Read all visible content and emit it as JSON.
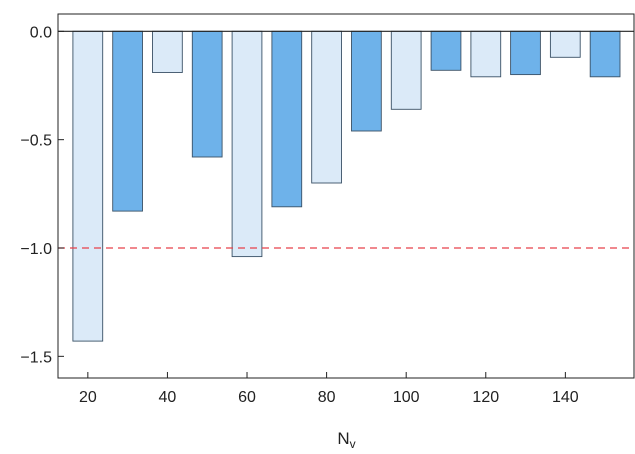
{
  "chart_data": {
    "type": "bar",
    "title": "",
    "xlabel": "N",
    "xlabel_subscript": "v",
    "ylabel": "",
    "categories": [
      "20",
      "25",
      "30",
      "35",
      "40",
      "45",
      "50",
      "55",
      "60",
      "65",
      "70",
      "75",
      "80",
      "85",
      "90",
      "95",
      "100",
      "105",
      "110",
      "115",
      "120",
      "125",
      "130",
      "135",
      "140",
      "145",
      "150"
    ],
    "x_tick_labels": [
      "20",
      "40",
      "60",
      "80",
      "100",
      "120",
      "140"
    ],
    "y_tick_labels": [
      "0.0",
      "−0.5",
      "−1.0",
      "−1.5"
    ],
    "bars": [
      {
        "x": 20,
        "value": -1.43,
        "style": "light"
      },
      {
        "x": 30,
        "value": -0.83,
        "style": "dark"
      },
      {
        "x": 40,
        "value": -0.19,
        "style": "light"
      },
      {
        "x": 50,
        "value": -0.58,
        "style": "dark"
      },
      {
        "x": 60,
        "value": -1.04,
        "style": "light"
      },
      {
        "x": 70,
        "value": -0.81,
        "style": "dark"
      },
      {
        "x": 80,
        "value": -0.7,
        "style": "light"
      },
      {
        "x": 90,
        "value": -0.46,
        "style": "dark"
      },
      {
        "x": 100,
        "value": -0.36,
        "style": "light"
      },
      {
        "x": 110,
        "value": -0.18,
        "style": "dark"
      },
      {
        "x": 120,
        "value": -0.21,
        "style": "light"
      },
      {
        "x": 130,
        "value": -0.2,
        "style": "dark"
      },
      {
        "x": 140,
        "value": -0.12,
        "style": "light"
      },
      {
        "x": 150,
        "value": -0.21,
        "style": "dark"
      }
    ],
    "reference_line": {
      "y": -1.0,
      "style": "dashed",
      "color": "#e8424a"
    },
    "ylim": [
      -1.6,
      0.08
    ],
    "xlim": [
      12.5,
      157.5
    ],
    "grid": false,
    "colors": {
      "light_fill": "#dbeaf8",
      "dark_fill": "#6eb2ea",
      "bar_stroke": "#3a5166",
      "zero_line": "#222222",
      "frame": "#222222"
    }
  }
}
